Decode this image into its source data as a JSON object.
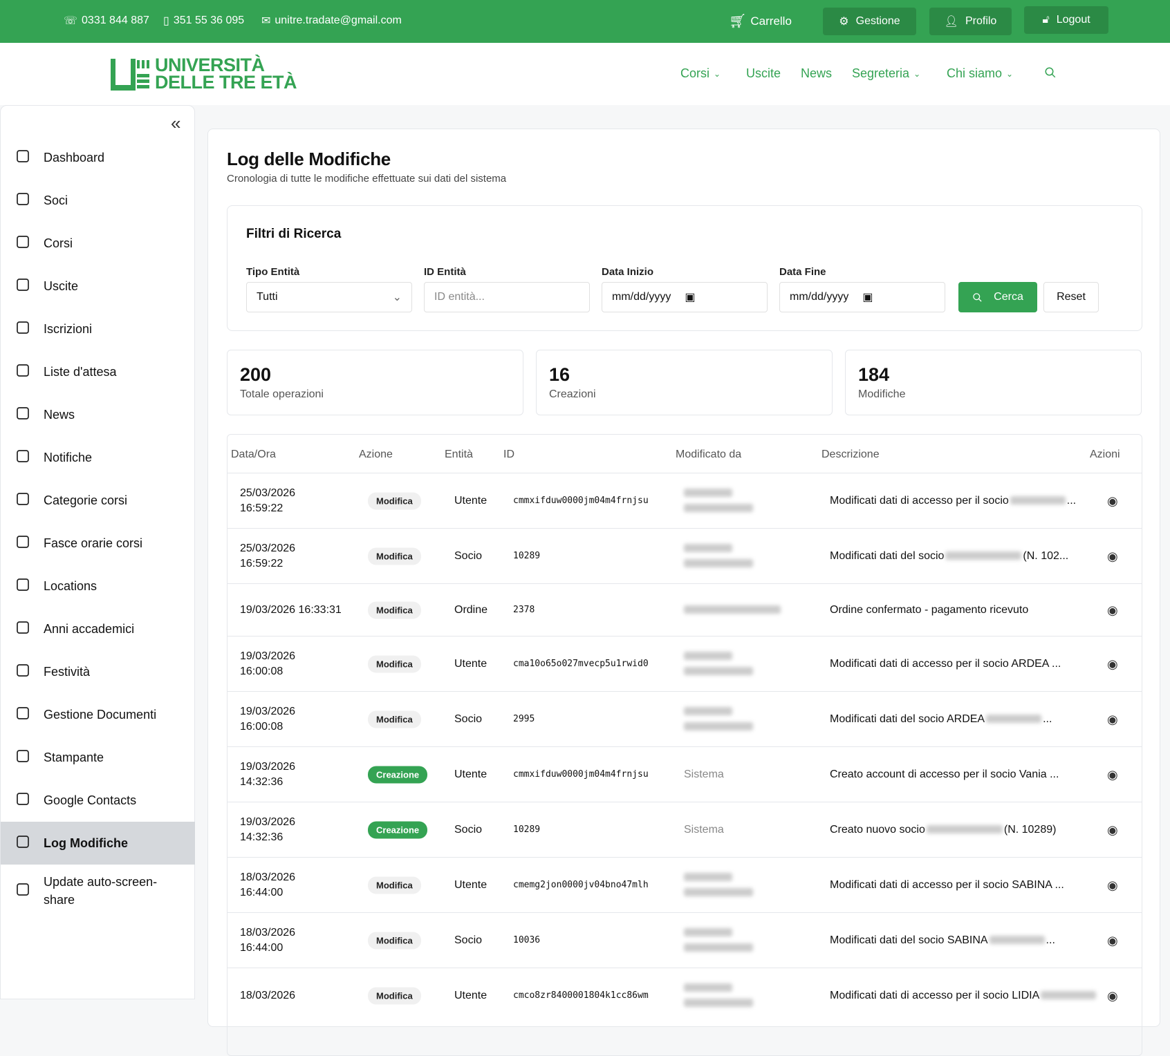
{
  "topbar": {
    "phone": "0331 844 887",
    "mobile": "351 55 36 095",
    "email": "unitre.tradate@gmail.com",
    "cart": "Carrello",
    "gestione": "Gestione",
    "profilo": "Profilo",
    "logout": "Logout"
  },
  "logo": {
    "line1": "UNIVERSITÀ",
    "line2": "DELLE TRE ETÀ"
  },
  "nav": [
    "Corsi",
    "Uscite",
    "News",
    "Segreteria",
    "Chi siamo"
  ],
  "sidebar": {
    "items": [
      {
        "label": "Dashboard",
        "icon": "home-icon"
      },
      {
        "label": "Soci",
        "icon": "users-icon"
      },
      {
        "label": "Corsi",
        "icon": "book-icon"
      },
      {
        "label": "Uscite",
        "icon": "map-icon"
      },
      {
        "label": "Iscrizioni",
        "icon": "clipboard-icon"
      },
      {
        "label": "Liste d'attesa",
        "icon": "clock-icon"
      },
      {
        "label": "News",
        "icon": "newspaper-icon"
      },
      {
        "label": "Notifiche",
        "icon": "bell-icon"
      },
      {
        "label": "Categorie corsi",
        "icon": "tag-icon"
      },
      {
        "label": "Fasce orarie corsi",
        "icon": "clock-icon"
      },
      {
        "label": "Locations",
        "icon": "building-icon"
      },
      {
        "label": "Anni accademici",
        "icon": "graduation-cap-icon"
      },
      {
        "label": "Festività",
        "icon": "calendar-icon"
      },
      {
        "label": "Gestione Documenti",
        "icon": "paperclip-icon"
      },
      {
        "label": "Stampante",
        "icon": "printer-icon"
      },
      {
        "label": "Google Contacts",
        "icon": "tag-icon"
      },
      {
        "label": "Log Modifiche",
        "icon": "clipboard-check-icon",
        "active": true
      },
      {
        "label": "Update auto-screen-share",
        "icon": "monitor-icon"
      }
    ]
  },
  "page": {
    "title": "Log delle Modifiche",
    "subtitle": "Cronologia di tutte le modifiche effettuate sui dati del sistema"
  },
  "filters": {
    "title": "Filtri di Ricerca",
    "tipo_label": "Tipo Entità",
    "tipo_value": "Tutti",
    "id_label": "ID Entità",
    "id_placeholder": "ID entità...",
    "inizio_label": "Data Inizio",
    "inizio_placeholder": "mm/dd/yyyy",
    "fine_label": "Data Fine",
    "fine_placeholder": "mm/dd/yyyy",
    "search": "Cerca",
    "reset": "Reset"
  },
  "stats": [
    {
      "value": "200",
      "label": "Totale operazioni"
    },
    {
      "value": "16",
      "label": "Creazioni"
    },
    {
      "value": "184",
      "label": "Modifiche"
    }
  ],
  "table": {
    "headers": [
      "Data/Ora",
      "Azione",
      "Entità",
      "ID",
      "Modificato da",
      "Descrizione",
      "Azioni"
    ],
    "rows": [
      {
        "date": "25/03/2026",
        "time": "16:59:22",
        "action": "Modifica",
        "entity": "Utente",
        "id": "cmmxifduw0000jm04m4frnjsu",
        "by": "",
        "desc": "Modificati dati di accesso per il socio",
        "desc2": "..."
      },
      {
        "date": "25/03/2026",
        "time": "16:59:22",
        "action": "Modifica",
        "entity": "Socio",
        "id": "10289",
        "by": "",
        "desc": "Modificati dati del socio",
        "desc2": "(N. 102..."
      },
      {
        "date": "19/03/2026 16:33:31",
        "time": "",
        "action": "Modifica",
        "entity": "Ordine",
        "id": "2378",
        "by": "",
        "desc": "Ordine confermato - pagamento ricevuto",
        "desc2": ""
      },
      {
        "date": "19/03/2026",
        "time": "16:00:08",
        "action": "Modifica",
        "entity": "Utente",
        "id": "cma10o65o027mvecp5u1rwid0",
        "by": "",
        "desc": "Modificati dati di accesso per il socio ARDEA ...",
        "desc2": ""
      },
      {
        "date": "19/03/2026",
        "time": "16:00:08",
        "action": "Modifica",
        "entity": "Socio",
        "id": "2995",
        "by": "",
        "desc": "Modificati dati del socio ARDEA",
        "desc2": "..."
      },
      {
        "date": "19/03/2026",
        "time": "14:32:36",
        "action": "Creazione",
        "entity": "Utente",
        "id": "cmmxifduw0000jm04m4frnjsu",
        "by": "Sistema",
        "desc": "Creato account di accesso per il socio Vania ...",
        "desc2": ""
      },
      {
        "date": "19/03/2026",
        "time": "14:32:36",
        "action": "Creazione",
        "entity": "Socio",
        "id": "10289",
        "by": "Sistema",
        "desc": "Creato nuovo socio",
        "desc2": "(N. 10289)"
      },
      {
        "date": "18/03/2026",
        "time": "16:44:00",
        "action": "Modifica",
        "entity": "Utente",
        "id": "cmemg2jon0000jv04bno47mlh",
        "by": "",
        "desc": "Modificati dati di accesso per il socio SABINA ...",
        "desc2": ""
      },
      {
        "date": "18/03/2026",
        "time": "16:44:00",
        "action": "Modifica",
        "entity": "Socio",
        "id": "10036",
        "by": "",
        "desc": "Modificati dati del socio SABINA",
        "desc2": "..."
      },
      {
        "date": "18/03/2026",
        "time": "",
        "action": "Modifica",
        "entity": "Utente",
        "id": "cmco8zr8400001804k1cc86wm",
        "by": "",
        "desc": "Modificati dati di accesso per il socio LIDIA",
        "desc2": ""
      }
    ]
  },
  "colors": {
    "brand": "#34a353",
    "brand_dark": "#2b8a45",
    "active_bg": "#d5d8dc"
  }
}
